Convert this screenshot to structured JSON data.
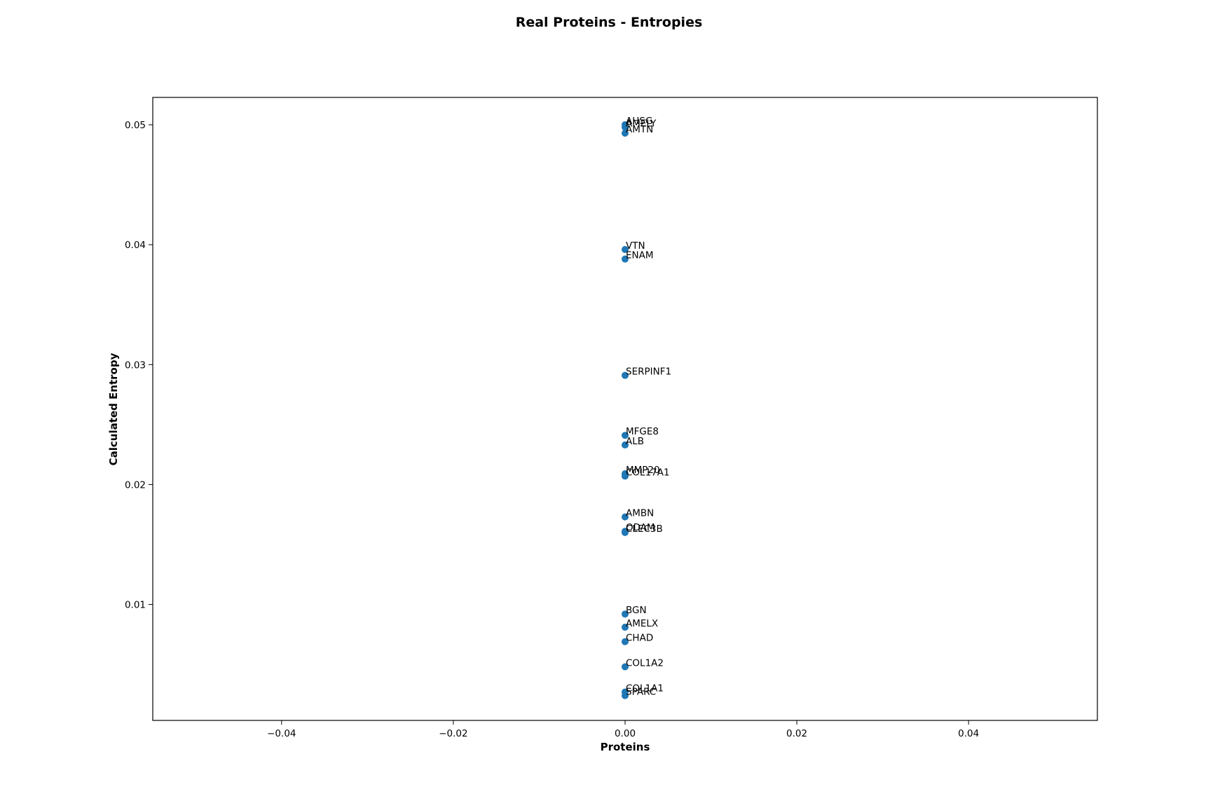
{
  "chart_data": {
    "type": "scatter",
    "title": "Real Proteins - Entropies",
    "xlabel": "Proteins",
    "ylabel": "Calculated Entropy",
    "xlim": [
      -0.055,
      0.055
    ],
    "ylim": [
      0.00033,
      0.05228
    ],
    "xticks": [
      -0.04,
      -0.02,
      0.0,
      0.02,
      0.04
    ],
    "xtick_labels": [
      "−0.04",
      "−0.02",
      "0.00",
      "0.02",
      "0.04"
    ],
    "yticks": [
      0.01,
      0.02,
      0.03,
      0.04,
      0.05
    ],
    "ytick_labels": [
      "0.01",
      "0.02",
      "0.03",
      "0.04",
      "0.05"
    ],
    "grid": false,
    "marker_color": "#1f77b4",
    "points": [
      {
        "label": "AHSG",
        "x": 0,
        "y": 0.05
      },
      {
        "label": "AMELY",
        "x": 0,
        "y": 0.0498
      },
      {
        "label": "AMTN",
        "x": 0,
        "y": 0.0493
      },
      {
        "label": "VTN",
        "x": 0,
        "y": 0.0396
      },
      {
        "label": "ENAM",
        "x": 0,
        "y": 0.0388
      },
      {
        "label": "SERPINF1",
        "x": 0,
        "y": 0.0291
      },
      {
        "label": "MFGE8",
        "x": 0,
        "y": 0.0241
      },
      {
        "label": "ALB",
        "x": 0,
        "y": 0.0233
      },
      {
        "label": "MMP20",
        "x": 0,
        "y": 0.0209
      },
      {
        "label": "COL17A1",
        "x": 0,
        "y": 0.0207
      },
      {
        "label": "AMBN",
        "x": 0,
        "y": 0.0173
      },
      {
        "label": "ODAM",
        "x": 0,
        "y": 0.0161
      },
      {
        "label": "CLEC3B",
        "x": 0,
        "y": 0.016
      },
      {
        "label": "BGN",
        "x": 0,
        "y": 0.0092
      },
      {
        "label": "AMELX",
        "x": 0,
        "y": 0.0081
      },
      {
        "label": "CHAD",
        "x": 0,
        "y": 0.0069
      },
      {
        "label": "COL1A2",
        "x": 0,
        "y": 0.0048
      },
      {
        "label": "COL1A1",
        "x": 0,
        "y": 0.0027
      },
      {
        "label": "SPARC",
        "x": 0,
        "y": 0.0024
      }
    ]
  }
}
